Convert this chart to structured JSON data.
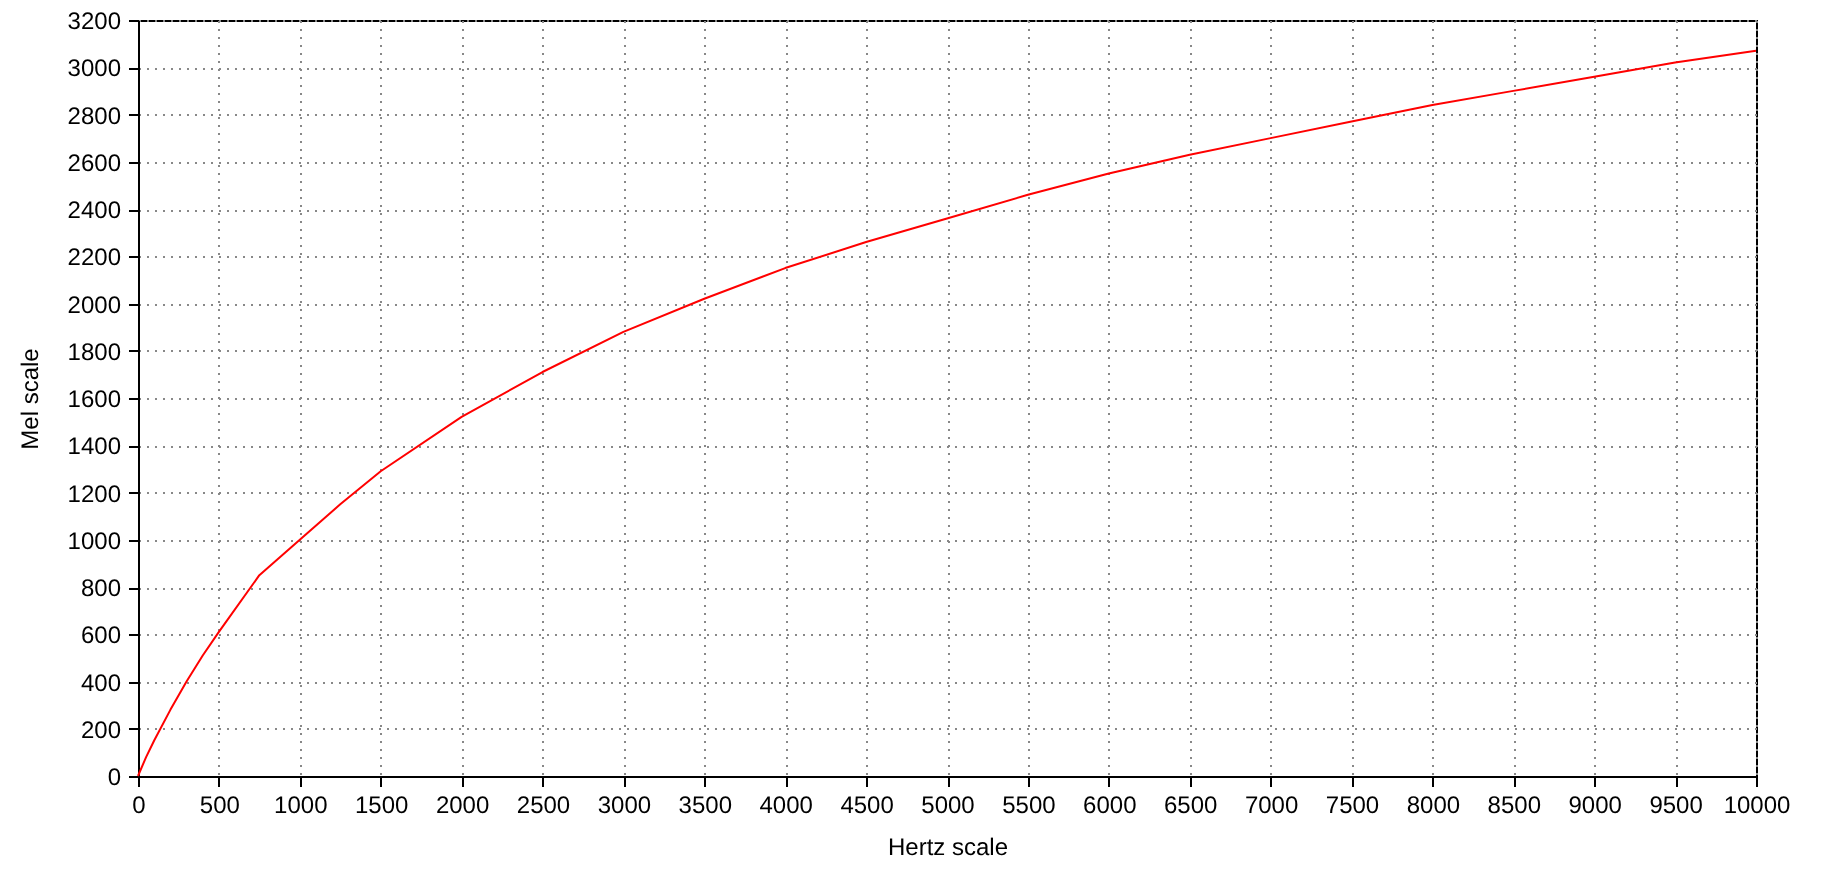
{
  "chart_data": {
    "type": "line",
    "xlabel": "Hertz scale",
    "ylabel": "Mel scale",
    "x": [
      0,
      50,
      100,
      200,
      300,
      400,
      500,
      750,
      1000,
      1250,
      1500,
      2000,
      2500,
      3000,
      3500,
      4000,
      4500,
      5000,
      5500,
      6000,
      6500,
      7000,
      7500,
      8000,
      8500,
      9000,
      9500,
      10000
    ],
    "series": [
      {
        "color": "#ff0000",
        "values": [
          0,
          80,
          150,
          280,
          400,
          510,
          610,
          850,
          1000,
          1150,
          1290,
          1520,
          1710,
          1880,
          2020,
          2150,
          2260,
          2360,
          2460,
          2550,
          2630,
          2700,
          2770,
          2840,
          2900,
          2960,
          3020,
          3070
        ]
      }
    ],
    "xlim": [
      0,
      10000
    ],
    "xticks": [
      0,
      500,
      1000,
      1500,
      2000,
      2500,
      3000,
      3500,
      4000,
      4500,
      5000,
      5500,
      6000,
      6500,
      7000,
      7500,
      8000,
      8500,
      9000,
      9500,
      10000
    ],
    "ylim": [
      0,
      3200
    ],
    "yticks": [
      0,
      200,
      400,
      600,
      800,
      1000,
      1200,
      1400,
      1600,
      1800,
      2000,
      2200,
      2400,
      2600,
      2800,
      3000,
      3200
    ],
    "grid": true,
    "line_style": "solid",
    "marker": "none"
  }
}
